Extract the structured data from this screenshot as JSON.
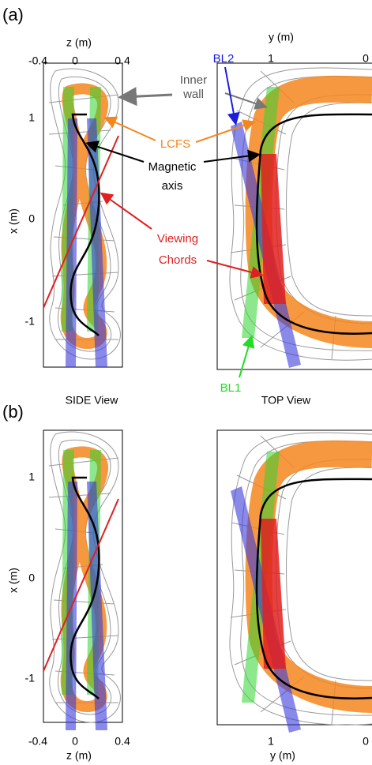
{
  "panels": [
    "(a)",
    "(b)"
  ],
  "side_axes": {
    "z_label": "z (m)",
    "x_label": "x (m)",
    "z_ticks": [
      "-0.4",
      "0",
      "0.4"
    ],
    "x_ticks": [
      "1",
      "0",
      "-1"
    ]
  },
  "top_axes": {
    "y_label": "y (m)",
    "y_ticks": [
      "1",
      "0"
    ]
  },
  "view_titles": [
    "SIDE View",
    "TOP View"
  ],
  "annotations": {
    "inner_wall": [
      "Inner",
      "wall"
    ],
    "bl2": "BL2",
    "lcfs": "LCFS",
    "magnetic_axis": [
      "Magnetic",
      "axis"
    ],
    "viewing_chords": [
      "Viewing",
      "Chords"
    ],
    "bl1": "BL1"
  }
}
